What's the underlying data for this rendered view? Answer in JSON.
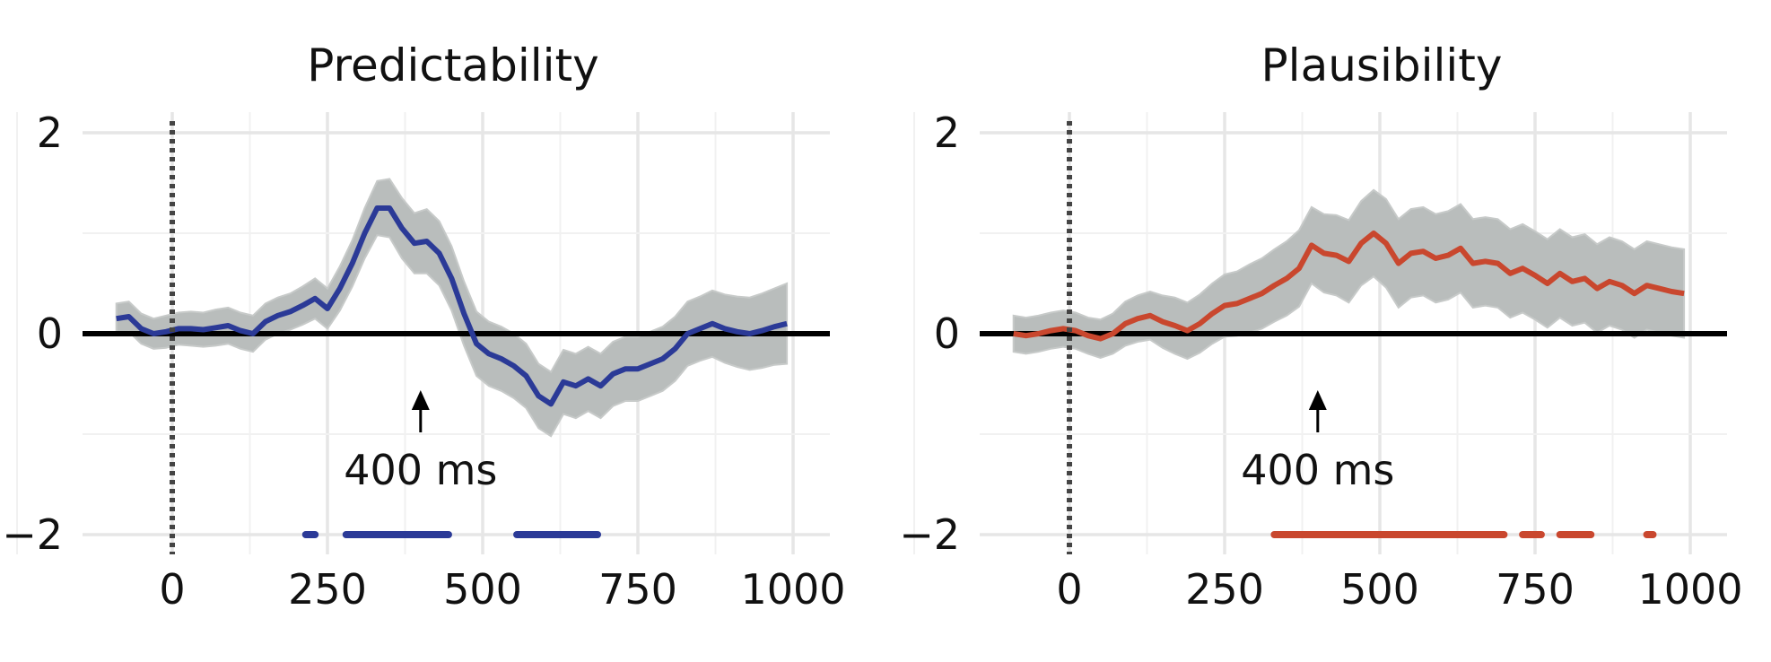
{
  "chart_data": [
    {
      "type": "line",
      "title": "Predictability",
      "xlabel": "",
      "ylabel": "",
      "xlim": [
        -100,
        1050
      ],
      "ylim": [
        -2.2,
        2.2
      ],
      "xticks": [
        "0",
        "250",
        "500",
        "750",
        "1000"
      ],
      "yticks": [
        "2",
        "0",
        "−2"
      ],
      "grid": true,
      "zero_line": 0,
      "onset_line": 0,
      "colors": {
        "line": "#2b3a97",
        "band": "#b9bdbc",
        "band_edge": "#c7cac9"
      },
      "annotation": {
        "label": "400 ms",
        "x": 400
      },
      "series": [
        {
          "name": "Predictability",
          "x": [
            -90,
            -70,
            -50,
            -30,
            -10,
            10,
            30,
            50,
            70,
            90,
            110,
            130,
            150,
            170,
            190,
            210,
            230,
            250,
            270,
            290,
            310,
            330,
            350,
            370,
            390,
            410,
            430,
            450,
            470,
            490,
            510,
            530,
            550,
            570,
            590,
            610,
            630,
            650,
            670,
            690,
            710,
            730,
            750,
            770,
            790,
            810,
            830,
            850,
            870,
            890,
            910,
            930,
            950,
            970,
            990
          ],
          "y": [
            0.15,
            0.17,
            0.05,
            0.0,
            0.02,
            0.05,
            0.05,
            0.04,
            0.06,
            0.08,
            0.03,
            0.0,
            0.12,
            0.18,
            0.22,
            0.28,
            0.35,
            0.25,
            0.45,
            0.7,
            1.0,
            1.25,
            1.25,
            1.05,
            0.9,
            0.92,
            0.8,
            0.55,
            0.2,
            -0.1,
            -0.2,
            -0.25,
            -0.32,
            -0.42,
            -0.62,
            -0.7,
            -0.48,
            -0.52,
            -0.45,
            -0.52,
            -0.4,
            -0.35,
            -0.35,
            -0.3,
            -0.25,
            -0.15,
            0.0,
            0.05,
            0.1,
            0.05,
            0.02,
            0.0,
            0.03,
            0.07,
            0.1
          ],
          "lower": [
            0.0,
            0.02,
            -0.1,
            -0.15,
            -0.14,
            -0.11,
            -0.12,
            -0.13,
            -0.12,
            -0.1,
            -0.15,
            -0.18,
            -0.06,
            0.0,
            0.04,
            0.09,
            0.15,
            0.05,
            0.23,
            0.47,
            0.75,
            0.98,
            0.96,
            0.75,
            0.6,
            0.6,
            0.48,
            0.23,
            -0.12,
            -0.42,
            -0.52,
            -0.57,
            -0.64,
            -0.74,
            -0.94,
            -1.02,
            -0.8,
            -0.84,
            -0.77,
            -0.84,
            -0.72,
            -0.67,
            -0.67,
            -0.62,
            -0.57,
            -0.47,
            -0.32,
            -0.27,
            -0.23,
            -0.29,
            -0.33,
            -0.36,
            -0.34,
            -0.31,
            -0.3
          ],
          "upper": [
            0.3,
            0.32,
            0.2,
            0.15,
            0.18,
            0.21,
            0.22,
            0.21,
            0.24,
            0.26,
            0.21,
            0.18,
            0.3,
            0.36,
            0.4,
            0.47,
            0.55,
            0.45,
            0.67,
            0.93,
            1.25,
            1.52,
            1.54,
            1.35,
            1.2,
            1.24,
            1.12,
            0.87,
            0.52,
            0.22,
            0.12,
            0.07,
            0.0,
            -0.1,
            -0.3,
            -0.38,
            -0.16,
            -0.2,
            -0.13,
            -0.2,
            -0.08,
            -0.03,
            -0.03,
            0.02,
            0.07,
            0.17,
            0.32,
            0.37,
            0.43,
            0.39,
            0.37,
            0.36,
            0.4,
            0.45,
            0.5
          ]
        }
      ],
      "significance": {
        "y": -2,
        "segments": [
          [
            215,
            230
          ],
          [
            280,
            445
          ],
          [
            555,
            685
          ]
        ]
      }
    },
    {
      "type": "line",
      "title": "Plausibility",
      "xlabel": "",
      "ylabel": "",
      "xlim": [
        -100,
        1050
      ],
      "ylim": [
        -2.2,
        2.2
      ],
      "xticks": [
        "0",
        "250",
        "500",
        "750",
        "1000"
      ],
      "yticks": [
        "2",
        "0",
        "−2"
      ],
      "grid": true,
      "zero_line": 0,
      "onset_line": 0,
      "colors": {
        "line": "#c9472e",
        "band": "#b9bdbc",
        "band_edge": "#c7cac9"
      },
      "annotation": {
        "label": "400 ms",
        "x": 400
      },
      "series": [
        {
          "name": "Plausibility",
          "x": [
            -90,
            -70,
            -50,
            -30,
            -10,
            10,
            30,
            50,
            70,
            90,
            110,
            130,
            150,
            170,
            190,
            210,
            230,
            250,
            270,
            290,
            310,
            330,
            350,
            370,
            390,
            410,
            430,
            450,
            470,
            490,
            510,
            530,
            550,
            570,
            590,
            610,
            630,
            650,
            670,
            690,
            710,
            730,
            750,
            770,
            790,
            810,
            830,
            850,
            870,
            890,
            910,
            930,
            950,
            970,
            990
          ],
          "y": [
            0.0,
            -0.02,
            0.0,
            0.03,
            0.05,
            0.03,
            -0.02,
            -0.05,
            0.0,
            0.1,
            0.15,
            0.18,
            0.12,
            0.08,
            0.03,
            0.1,
            0.2,
            0.28,
            0.3,
            0.35,
            0.4,
            0.48,
            0.55,
            0.65,
            0.88,
            0.8,
            0.78,
            0.72,
            0.9,
            1.0,
            0.9,
            0.7,
            0.8,
            0.82,
            0.75,
            0.78,
            0.85,
            0.7,
            0.72,
            0.7,
            0.6,
            0.65,
            0.58,
            0.5,
            0.6,
            0.52,
            0.55,
            0.45,
            0.52,
            0.48,
            0.4,
            0.48,
            0.45,
            0.42,
            0.4
          ],
          "lower": [
            -0.18,
            -0.2,
            -0.18,
            -0.15,
            -0.13,
            -0.15,
            -0.2,
            -0.24,
            -0.2,
            -0.12,
            -0.08,
            -0.06,
            -0.14,
            -0.2,
            -0.25,
            -0.19,
            -0.1,
            -0.03,
            -0.02,
            0.01,
            0.05,
            0.12,
            0.18,
            0.27,
            0.5,
            0.41,
            0.38,
            0.31,
            0.48,
            0.57,
            0.46,
            0.26,
            0.36,
            0.38,
            0.31,
            0.34,
            0.41,
            0.26,
            0.28,
            0.26,
            0.16,
            0.21,
            0.14,
            0.06,
            0.16,
            0.08,
            0.11,
            0.01,
            0.08,
            0.04,
            -0.04,
            0.04,
            0.01,
            -0.02,
            -0.04
          ],
          "upper": [
            0.18,
            0.16,
            0.18,
            0.21,
            0.23,
            0.21,
            0.16,
            0.14,
            0.2,
            0.32,
            0.38,
            0.42,
            0.38,
            0.36,
            0.31,
            0.39,
            0.5,
            0.59,
            0.62,
            0.69,
            0.75,
            0.84,
            0.92,
            1.03,
            1.26,
            1.19,
            1.18,
            1.13,
            1.32,
            1.43,
            1.34,
            1.14,
            1.24,
            1.26,
            1.19,
            1.22,
            1.29,
            1.14,
            1.16,
            1.14,
            1.04,
            1.09,
            1.02,
            0.94,
            1.04,
            0.96,
            0.99,
            0.89,
            0.96,
            0.92,
            0.84,
            0.92,
            0.89,
            0.86,
            0.84
          ]
        }
      ],
      "significance": {
        "y": -2,
        "segments": [
          [
            330,
            700
          ],
          [
            730,
            760
          ],
          [
            790,
            840
          ],
          [
            930,
            940
          ]
        ]
      }
    }
  ]
}
